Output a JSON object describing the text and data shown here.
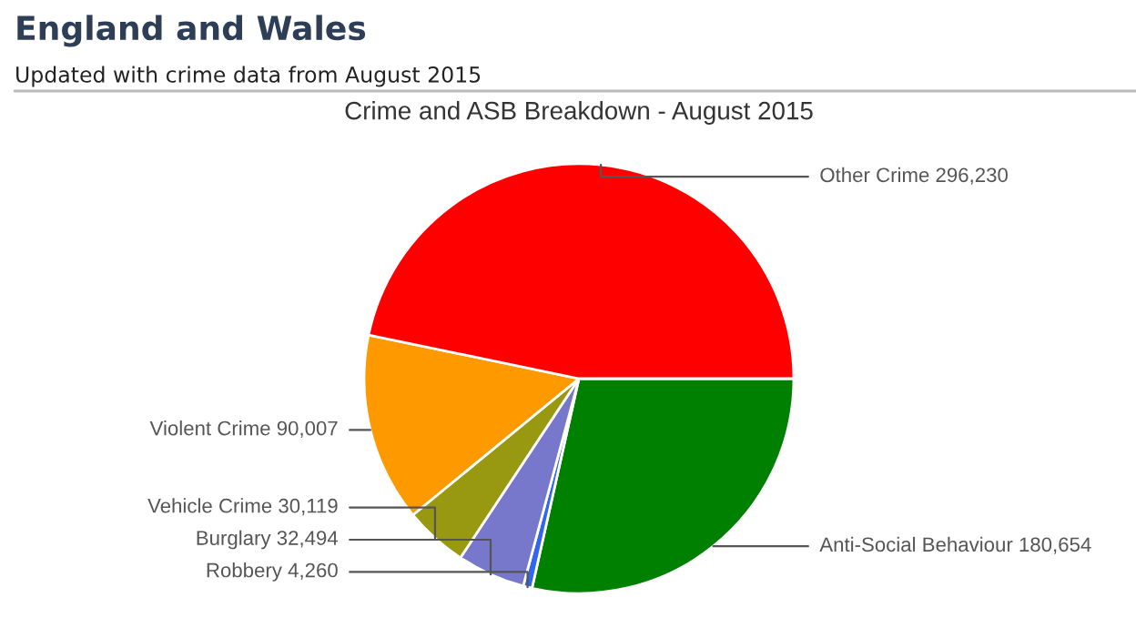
{
  "chart_data": {
    "type": "pie",
    "title": "Crime and ASB Breakdown - August 2015",
    "annotations": [
      "England and Wales",
      "Updated with crime data from August 2015"
    ],
    "categories": [
      "Anti-Social Behaviour",
      "Robbery",
      "Burglary",
      "Vehicle Crime",
      "Violent Crime",
      "Other Crime"
    ],
    "values": [
      180654,
      4260,
      32494,
      30119,
      90007,
      296230
    ],
    "value_labels": [
      "180,654",
      "4,260",
      "32,494",
      "30,119",
      "90,007",
      "296,230"
    ],
    "colors": [
      "#008000",
      "#3366ee",
      "#7777cc",
      "#999911",
      "#ff9900",
      "#ff0000"
    ],
    "legend": false
  }
}
